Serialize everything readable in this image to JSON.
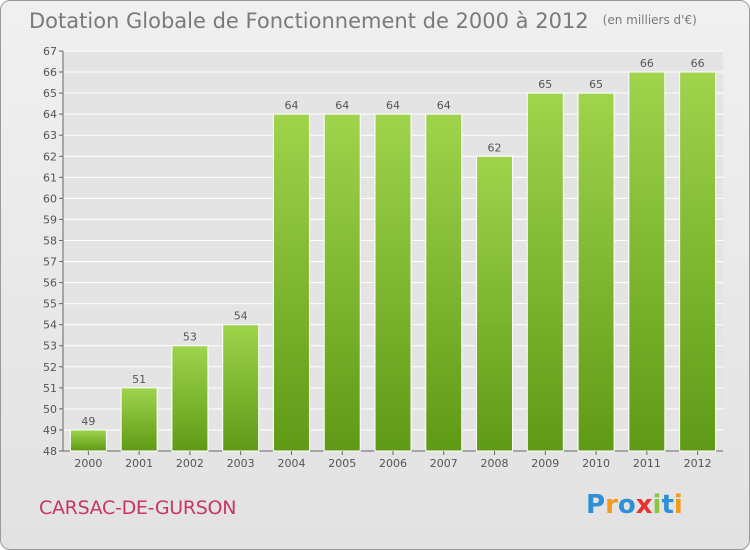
{
  "header": {
    "title": "Dotation Globale de Fonctionnement de 2000 à 2012",
    "unit": "(en milliers d'€)"
  },
  "footer": {
    "commune": "CARSAC-DE-GURSON",
    "brand": "Proxiti"
  },
  "colors": {
    "bar_light": "#9fd44c",
    "bar_dark": "#5f9a16",
    "grid": "#ffffff",
    "commune_text": "#c8346b"
  },
  "chart_data": {
    "type": "bar",
    "title": "Dotation Globale de Fonctionnement de 2000 à 2012",
    "subtitle": "(en milliers d'€)",
    "categories": [
      "2000",
      "2001",
      "2002",
      "2003",
      "2004",
      "2005",
      "2006",
      "2007",
      "2008",
      "2009",
      "2010",
      "2011",
      "2012"
    ],
    "values": [
      49,
      51,
      53,
      54,
      64,
      64,
      64,
      64,
      62,
      65,
      65,
      66,
      66
    ],
    "ylim": [
      48,
      67
    ],
    "yticks": [
      48,
      49,
      50,
      51,
      52,
      53,
      54,
      55,
      56,
      57,
      58,
      59,
      60,
      61,
      62,
      63,
      64,
      65,
      66,
      67
    ],
    "grid": true,
    "xlabel": "",
    "ylabel": ""
  }
}
